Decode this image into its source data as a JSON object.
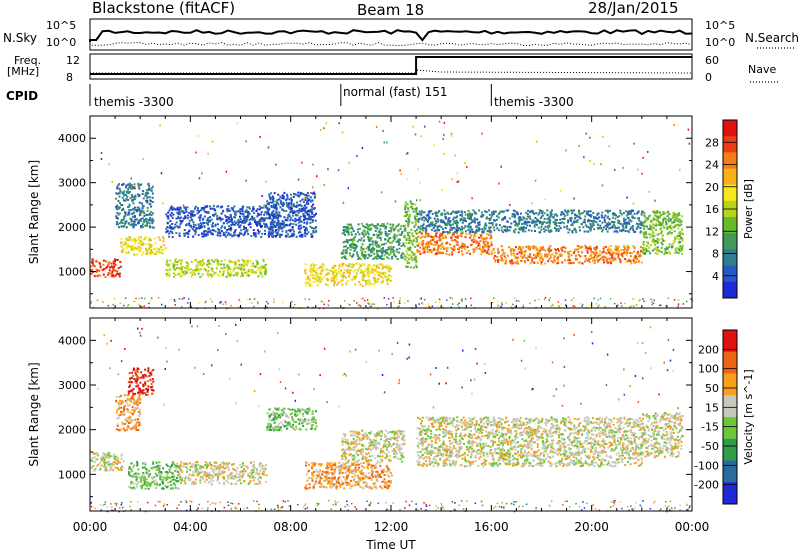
{
  "header": {
    "title": "Blackstone (fitACF)",
    "beam": "Beam 18",
    "date": "28/Jan/2015"
  },
  "top_panels": {
    "nsky_label": "N.Sky",
    "nsearch_label": "N.Search",
    "nsky_ticks": [
      "10^5",
      "10^0"
    ],
    "nsearch_ticks": [
      "10^5",
      "10^0"
    ],
    "freq_label_line1": "Freq.",
    "freq_label_line2": "[MHz]",
    "freq_ticks": [
      "12",
      "8"
    ],
    "nave_label": "Nave",
    "nave_ticks": [
      "60",
      "0"
    ],
    "cpid_label": "CPID",
    "cpid_segments": [
      {
        "label": "themis -3300",
        "start_hour": 0,
        "end_hour": 10
      },
      {
        "label": "normal (fast) 151",
        "start_hour": 10,
        "end_hour": 16
      },
      {
        "label": "themis -3300",
        "start_hour": 16,
        "end_hour": 24
      }
    ]
  },
  "chart_data": [
    {
      "type": "heatmap",
      "quantity": "Power",
      "ylabel": "Slant Range [km]",
      "xlim": [
        0,
        24
      ],
      "ylim": [
        180,
        4500
      ],
      "yticks": [
        1000,
        2000,
        3000,
        4000
      ],
      "colorbar": {
        "label": "Power [dB]",
        "ticks": [
          "4",
          "8",
          "12",
          "16",
          "20",
          "24",
          "28"
        ],
        "colors": [
          "#1f2ad6",
          "#2657c4",
          "#2f7e8f",
          "#3f9a5a",
          "#66bb2c",
          "#b8d31c",
          "#f6e81c",
          "#f9b21a",
          "#f77d16",
          "#ef3c13",
          "#e01313"
        ]
      },
      "bands": [
        {
          "t_start": 0.0,
          "t_end": 1.2,
          "r_low": 900,
          "r_high": 1300,
          "level": 9
        },
        {
          "t_start": 1.2,
          "t_end": 3.0,
          "r_low": 1400,
          "r_high": 1800,
          "level": 6
        },
        {
          "t_start": 1.0,
          "t_end": 2.5,
          "r_low": 2000,
          "r_high": 3000,
          "level": 2
        },
        {
          "t_start": 3.0,
          "t_end": 7.0,
          "r_low": 900,
          "r_high": 1300,
          "level": 5
        },
        {
          "t_start": 3.0,
          "t_end": 7.5,
          "r_low": 1800,
          "r_high": 2500,
          "level": 1
        },
        {
          "t_start": 7.0,
          "t_end": 9.0,
          "r_low": 1800,
          "r_high": 2800,
          "level": 1
        },
        {
          "t_start": 8.5,
          "t_end": 12.0,
          "r_low": 700,
          "r_high": 1200,
          "level": 6
        },
        {
          "t_start": 10.0,
          "t_end": 12.5,
          "r_low": 1300,
          "r_high": 2100,
          "level": 3
        },
        {
          "t_start": 12.5,
          "t_end": 13.0,
          "r_low": 1100,
          "r_high": 2600,
          "level": 4
        },
        {
          "t_start": 13.0,
          "t_end": 16.0,
          "r_low": 1400,
          "r_high": 1900,
          "level": 8
        },
        {
          "t_start": 16.0,
          "t_end": 22.0,
          "r_low": 1200,
          "r_high": 1600,
          "level": 8
        },
        {
          "t_start": 13.0,
          "t_end": 22.0,
          "r_low": 1900,
          "r_high": 2400,
          "level": 2
        },
        {
          "t_start": 22.0,
          "t_end": 23.6,
          "r_low": 1400,
          "r_high": 2400,
          "level": 4
        }
      ]
    },
    {
      "type": "heatmap",
      "quantity": "Velocity",
      "ylabel": "Slant Range [km]",
      "xlabel": "Time UT",
      "xlim": [
        0,
        24
      ],
      "xticks": [
        "00:00",
        "04:00",
        "08:00",
        "12:00",
        "16:00",
        "20:00",
        "00:00"
      ],
      "ylim": [
        180,
        4500
      ],
      "yticks": [
        1000,
        2000,
        3000,
        4000
      ],
      "colorbar": {
        "label": "Velocity [m s^-1]",
        "ticks": [
          "200",
          "100",
          "50",
          "15",
          "-15",
          "-50",
          "-100",
          "-200"
        ],
        "colors": [
          "#1f2ad6",
          "#2a6a9c",
          "#2f9d4a",
          "#6ec63b",
          "#c8c8bc",
          "#f8a01e",
          "#f06515",
          "#e01313"
        ]
      },
      "bands": [
        {
          "t_start": 0.0,
          "t_end": 1.3,
          "r_low": 1100,
          "r_high": 1500,
          "level": 4
        },
        {
          "t_start": 1.0,
          "t_end": 2.0,
          "r_low": 2000,
          "r_high": 2800,
          "level": 5
        },
        {
          "t_start": 1.5,
          "t_end": 2.5,
          "r_low": 2800,
          "r_high": 3400,
          "level": 7
        },
        {
          "t_start": 1.5,
          "t_end": 3.5,
          "r_low": 700,
          "r_high": 1300,
          "level": 3
        },
        {
          "t_start": 3.5,
          "t_end": 7.0,
          "r_low": 800,
          "r_high": 1300,
          "level": 4
        },
        {
          "t_start": 7.0,
          "t_end": 9.0,
          "r_low": 2000,
          "r_high": 2500,
          "level": 3
        },
        {
          "t_start": 8.5,
          "t_end": 12.0,
          "r_low": 700,
          "r_high": 1300,
          "level": 5
        },
        {
          "t_start": 10.0,
          "t_end": 12.5,
          "r_low": 1300,
          "r_high": 2000,
          "level": 4
        },
        {
          "t_start": 13.0,
          "t_end": 22.0,
          "r_low": 1200,
          "r_high": 1800,
          "level": 4
        },
        {
          "t_start": 13.0,
          "t_end": 22.0,
          "r_low": 1800,
          "r_high": 2300,
          "level": 4
        },
        {
          "t_start": 22.0,
          "t_end": 23.6,
          "r_low": 1400,
          "r_high": 2400,
          "level": 4
        }
      ]
    }
  ]
}
